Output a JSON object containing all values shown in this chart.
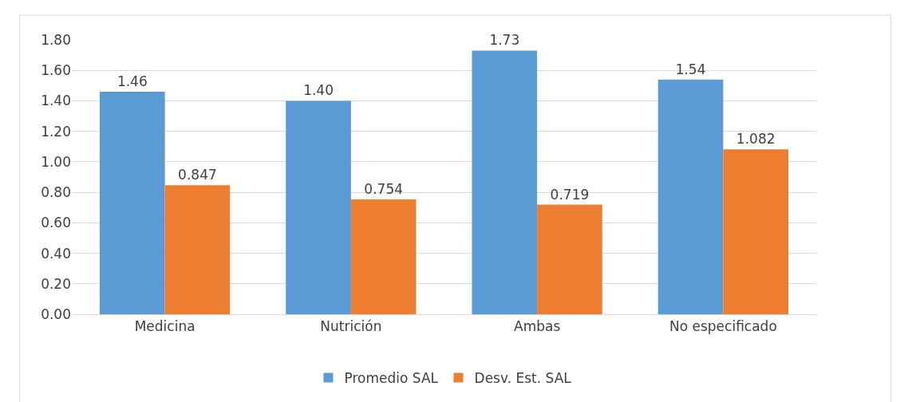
{
  "chart_data": {
    "type": "bar",
    "categories": [
      "Medicina",
      "Nutrición",
      "Ambas",
      "No especificado"
    ],
    "series": [
      {
        "name": "Promedio SAL",
        "color": "#5b9bd5",
        "values": [
          1.46,
          1.4,
          1.73,
          1.54
        ],
        "value_labels": [
          "1.46",
          "1.40",
          "1.73",
          "1.54"
        ]
      },
      {
        "name": "Desv. Est. SAL",
        "color": "#ed7d31",
        "values": [
          0.847,
          0.754,
          0.719,
          1.082
        ],
        "value_labels": [
          "0.847",
          "0.754",
          "0.719",
          "1.082"
        ]
      }
    ],
    "ylim": [
      0,
      1.8
    ],
    "yticks": [
      {
        "value": 0,
        "label": "0.00"
      },
      {
        "value": 0.2,
        "label": "0.20"
      },
      {
        "value": 0.4,
        "label": "0.40"
      },
      {
        "value": 0.6,
        "label": "0.60"
      },
      {
        "value": 0.8,
        "label": "0.80"
      },
      {
        "value": 1,
        "label": "1.00"
      },
      {
        "value": 1.2,
        "label": "1.20"
      },
      {
        "value": 1.4,
        "label": "1.40"
      },
      {
        "value": 1.6,
        "label": "1.60"
      },
      {
        "value": 1.8,
        "label": "1.80"
      }
    ],
    "grid": "y",
    "legend": "bottom"
  }
}
